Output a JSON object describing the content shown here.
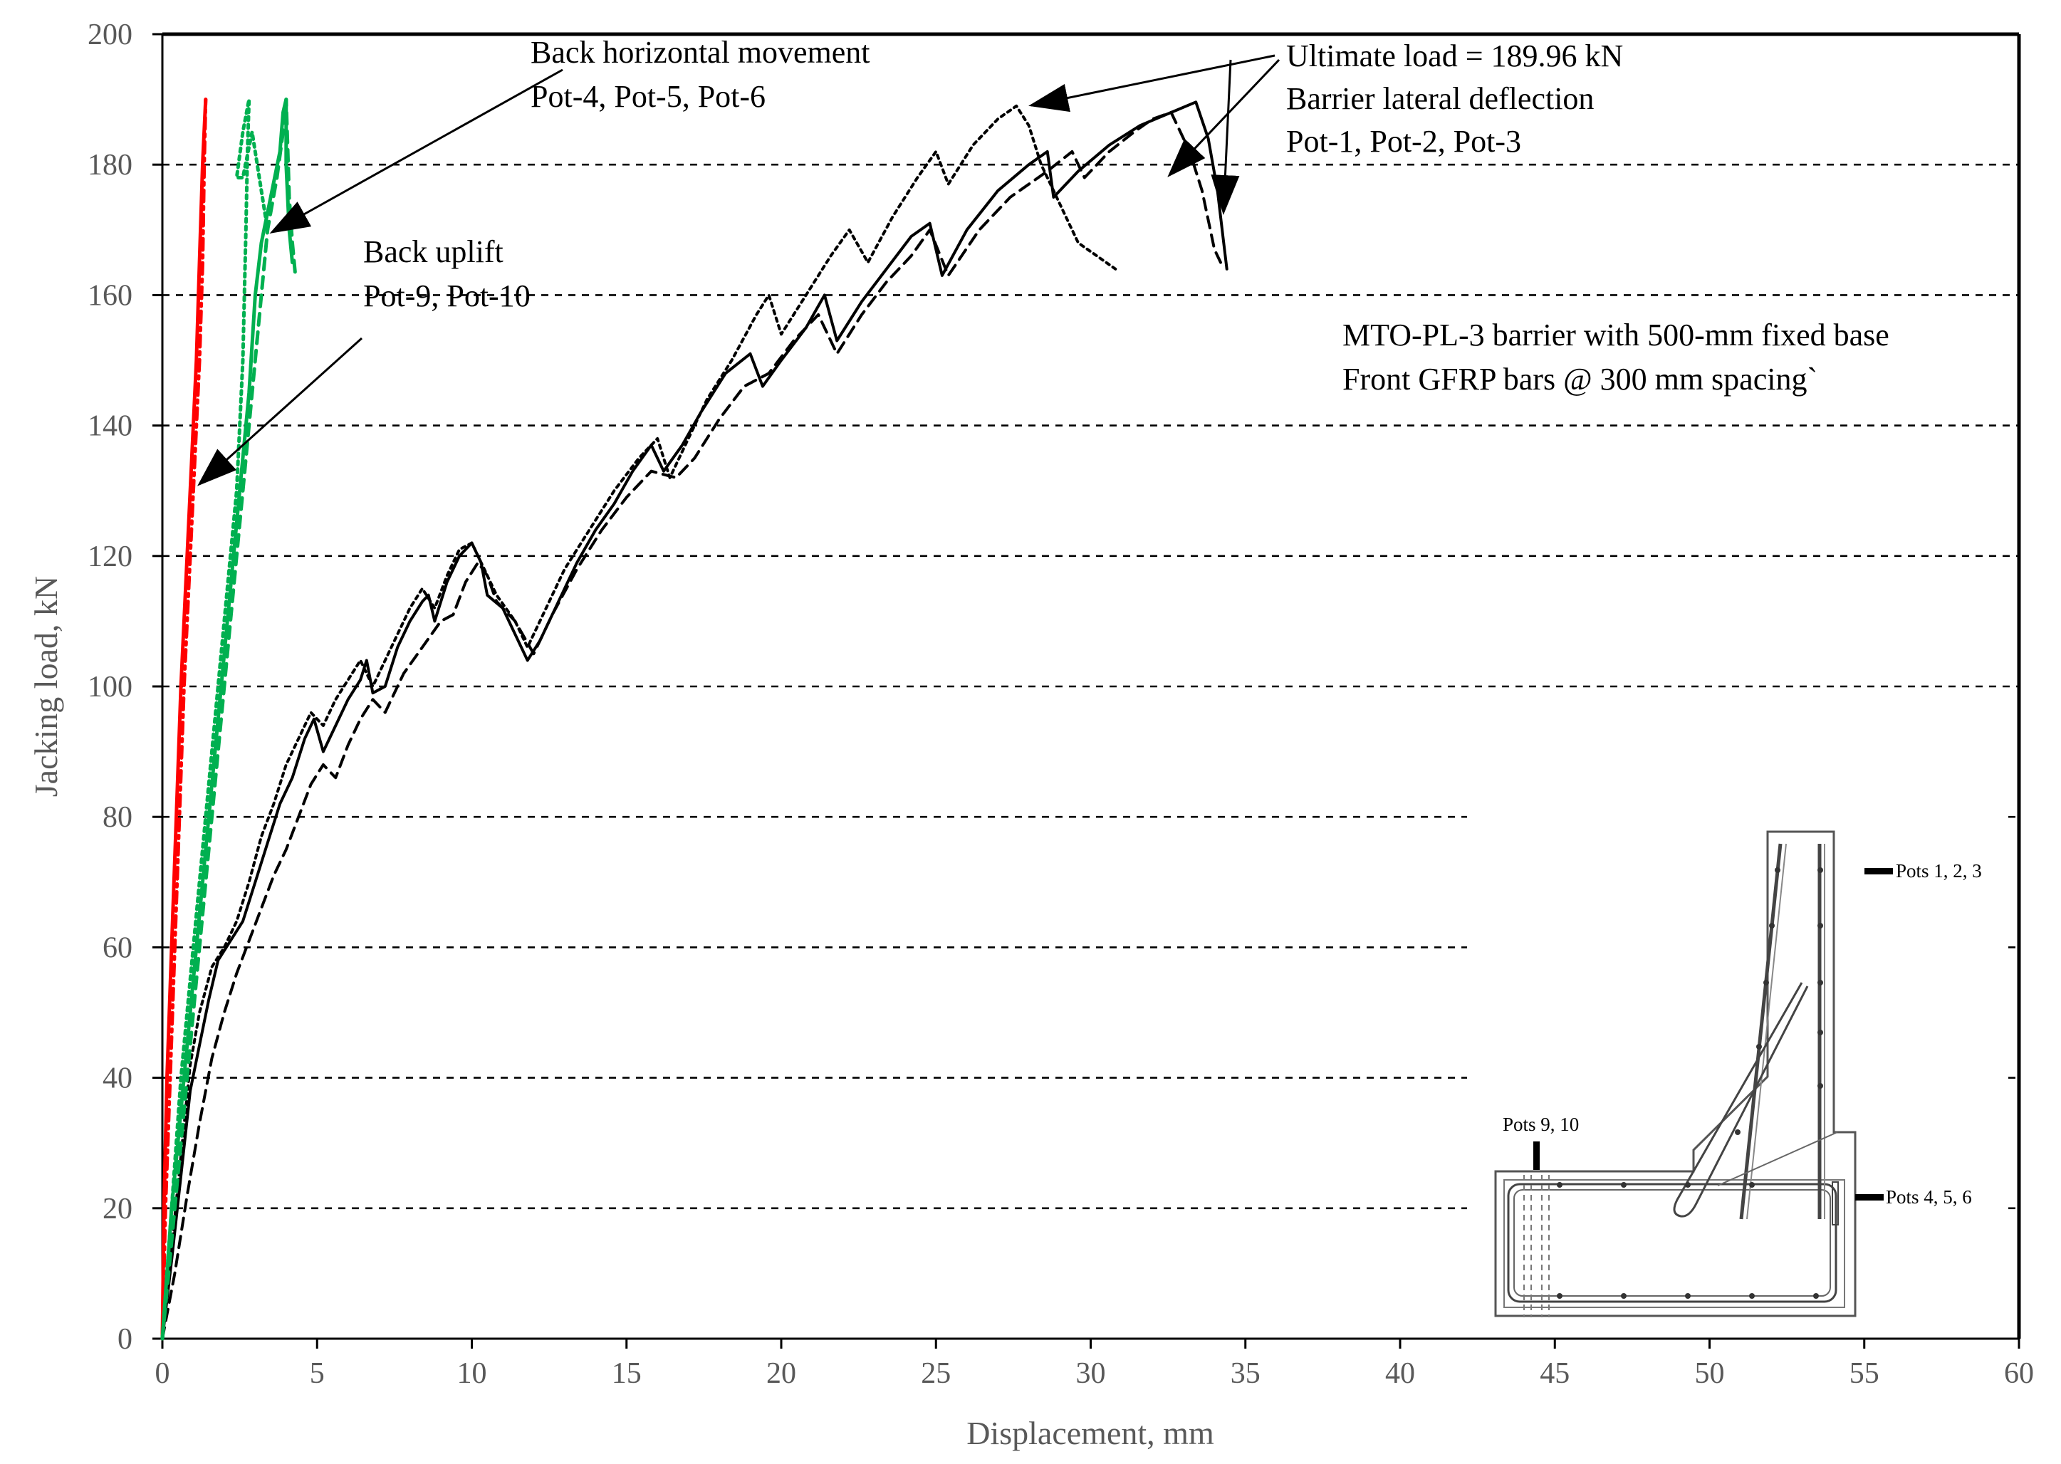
{
  "chart_data": {
    "type": "line",
    "title": "",
    "xlabel": "Displacement, mm",
    "ylabel": "Jacking load, kN",
    "xlim": [
      0,
      60
    ],
    "ylim": [
      0,
      200
    ],
    "x_ticks": [
      0,
      5,
      10,
      15,
      20,
      25,
      30,
      35,
      40,
      45,
      50,
      55,
      60
    ],
    "y_ticks": [
      0,
      20,
      40,
      60,
      80,
      100,
      120,
      140,
      160,
      180,
      200
    ],
    "grid": "horizontal dashed",
    "legend": "none",
    "series": [
      {
        "color": "#000000",
        "dash": "solid",
        "points": [
          [
            0,
            0
          ],
          [
            0.3,
            12
          ],
          [
            0.6,
            25
          ],
          [
            0.9,
            38
          ],
          [
            1.2,
            45
          ],
          [
            1.5,
            52
          ],
          [
            1.8,
            58
          ],
          [
            2.2,
            61
          ],
          [
            2.6,
            64
          ],
          [
            3,
            70
          ],
          [
            3.4,
            76
          ],
          [
            3.8,
            82
          ],
          [
            4.2,
            86
          ],
          [
            4.6,
            92
          ],
          [
            4.9,
            95
          ],
          [
            5.2,
            90
          ],
          [
            5.6,
            94
          ],
          [
            6,
            98
          ],
          [
            6.4,
            101
          ],
          [
            6.6,
            104
          ],
          [
            6.8,
            99
          ],
          [
            7.2,
            100
          ],
          [
            7.6,
            106
          ],
          [
            8,
            110
          ],
          [
            8.4,
            113
          ],
          [
            8.6,
            114
          ],
          [
            8.8,
            110
          ],
          [
            9.2,
            116
          ],
          [
            9.6,
            120
          ],
          [
            10,
            122
          ],
          [
            10.3,
            119
          ],
          [
            10.5,
            114
          ],
          [
            11,
            112
          ],
          [
            11.4,
            108
          ],
          [
            11.8,
            104
          ],
          [
            12.2,
            107
          ],
          [
            12.8,
            113
          ],
          [
            13.4,
            119
          ],
          [
            14,
            124
          ],
          [
            14.6,
            128
          ],
          [
            15.2,
            133
          ],
          [
            15.8,
            137
          ],
          [
            16.2,
            133
          ],
          [
            16.8,
            137
          ],
          [
            17.4,
            142
          ],
          [
            18.2,
            148
          ],
          [
            19,
            151
          ],
          [
            19.4,
            146
          ],
          [
            20,
            150
          ],
          [
            20.8,
            155
          ],
          [
            21.4,
            160
          ],
          [
            21.8,
            153
          ],
          [
            22.6,
            159
          ],
          [
            23.4,
            164
          ],
          [
            24.2,
            169
          ],
          [
            24.8,
            171
          ],
          [
            25.2,
            163
          ],
          [
            26,
            170
          ],
          [
            27,
            176
          ],
          [
            28,
            180
          ],
          [
            28.6,
            182
          ],
          [
            28.8,
            175
          ],
          [
            29.6,
            179
          ],
          [
            30.6,
            183
          ],
          [
            31.6,
            186
          ],
          [
            32.6,
            188
          ],
          [
            33.4,
            189.6
          ],
          [
            33.8,
            184
          ],
          [
            34.1,
            176
          ],
          [
            34.3,
            168
          ],
          [
            34.4,
            164
          ]
        ]
      },
      {
        "color": "#000000",
        "dash": "dashed",
        "points": [
          [
            0,
            0
          ],
          [
            0.4,
            10
          ],
          [
            0.8,
            22
          ],
          [
            1.2,
            33
          ],
          [
            1.6,
            43
          ],
          [
            2,
            50
          ],
          [
            2.4,
            56
          ],
          [
            2.8,
            61
          ],
          [
            3.2,
            66
          ],
          [
            3.6,
            71
          ],
          [
            4,
            75
          ],
          [
            4.4,
            80
          ],
          [
            4.8,
            85
          ],
          [
            5.2,
            88
          ],
          [
            5.6,
            86
          ],
          [
            6,
            91
          ],
          [
            6.4,
            95
          ],
          [
            6.8,
            98
          ],
          [
            7.2,
            96
          ],
          [
            7.8,
            102
          ],
          [
            8.4,
            106
          ],
          [
            9,
            110
          ],
          [
            9.4,
            111
          ],
          [
            9.8,
            116
          ],
          [
            10.2,
            119
          ],
          [
            10.5,
            117
          ],
          [
            10.8,
            113
          ],
          [
            11.4,
            110
          ],
          [
            12,
            105
          ],
          [
            12.6,
            111
          ],
          [
            13.4,
            118
          ],
          [
            14.2,
            124
          ],
          [
            15,
            129
          ],
          [
            15.8,
            133
          ],
          [
            16.6,
            132
          ],
          [
            17.2,
            135
          ],
          [
            18,
            141
          ],
          [
            18.8,
            146
          ],
          [
            19.6,
            148
          ],
          [
            20.4,
            153
          ],
          [
            21.2,
            157
          ],
          [
            21.8,
            151
          ],
          [
            22.6,
            157
          ],
          [
            23.4,
            162
          ],
          [
            24.2,
            166
          ],
          [
            24.8,
            170
          ],
          [
            25.4,
            163
          ],
          [
            26.4,
            170
          ],
          [
            27.4,
            175
          ],
          [
            28.6,
            179
          ],
          [
            29.4,
            182
          ],
          [
            29.8,
            178
          ],
          [
            30.6,
            182
          ],
          [
            31.4,
            185
          ],
          [
            32,
            187
          ],
          [
            32.6,
            188
          ],
          [
            33.2,
            182
          ],
          [
            33.6,
            176
          ],
          [
            34,
            167
          ],
          [
            34.2,
            165
          ]
        ]
      },
      {
        "color": "#000000",
        "dash": "dotted",
        "points": [
          [
            0,
            0
          ],
          [
            0.3,
            14
          ],
          [
            0.6,
            28
          ],
          [
            0.9,
            42
          ],
          [
            1.2,
            50
          ],
          [
            1.6,
            57
          ],
          [
            2,
            60
          ],
          [
            2.4,
            64
          ],
          [
            2.8,
            70
          ],
          [
            3.2,
            77
          ],
          [
            3.6,
            82
          ],
          [
            4,
            88
          ],
          [
            4.4,
            92
          ],
          [
            4.8,
            96
          ],
          [
            5.2,
            94
          ],
          [
            5.6,
            98
          ],
          [
            6,
            101
          ],
          [
            6.4,
            104
          ],
          [
            6.8,
            100
          ],
          [
            7.2,
            104
          ],
          [
            7.6,
            108
          ],
          [
            8,
            112
          ],
          [
            8.4,
            115
          ],
          [
            8.8,
            112
          ],
          [
            9.2,
            117
          ],
          [
            9.6,
            121
          ],
          [
            10,
            122
          ],
          [
            10.4,
            118
          ],
          [
            10.8,
            114
          ],
          [
            11.4,
            110
          ],
          [
            11.8,
            106
          ],
          [
            12.4,
            112
          ],
          [
            13,
            118
          ],
          [
            13.8,
            124
          ],
          [
            14.6,
            130
          ],
          [
            15.4,
            135
          ],
          [
            16,
            138
          ],
          [
            16.4,
            132
          ],
          [
            17,
            138
          ],
          [
            17.6,
            144
          ],
          [
            18.4,
            150
          ],
          [
            19.2,
            157
          ],
          [
            19.6,
            160
          ],
          [
            20,
            154
          ],
          [
            20.8,
            160
          ],
          [
            21.6,
            166
          ],
          [
            22.2,
            170
          ],
          [
            22.8,
            165
          ],
          [
            23.6,
            172
          ],
          [
            24.4,
            178
          ],
          [
            25,
            182
          ],
          [
            25.4,
            177
          ],
          [
            26.2,
            183
          ],
          [
            27,
            187
          ],
          [
            27.6,
            189
          ],
          [
            28,
            186
          ],
          [
            28.4,
            180
          ],
          [
            28.8,
            176
          ],
          [
            29.2,
            172
          ],
          [
            29.6,
            168
          ],
          [
            30.2,
            166
          ],
          [
            30.8,
            164
          ]
        ]
      },
      {
        "color": "#ff0000",
        "dash": "solid",
        "points": [
          [
            0,
            0
          ],
          [
            0.05,
            20
          ],
          [
            0.15,
            40
          ],
          [
            0.3,
            60
          ],
          [
            0.45,
            80
          ],
          [
            0.6,
            100
          ],
          [
            0.8,
            120
          ],
          [
            0.95,
            135
          ],
          [
            1.1,
            150
          ],
          [
            1.2,
            165
          ],
          [
            1.3,
            180
          ],
          [
            1.4,
            190
          ]
        ]
      },
      {
        "color": "#ff0000",
        "dash": "dashdot",
        "points": [
          [
            0,
            0
          ],
          [
            0.1,
            20
          ],
          [
            0.25,
            40
          ],
          [
            0.4,
            60
          ],
          [
            0.55,
            80
          ],
          [
            0.7,
            100
          ],
          [
            0.9,
            120
          ],
          [
            1.05,
            135
          ],
          [
            1.2,
            150
          ],
          [
            1.3,
            165
          ],
          [
            1.35,
            180
          ],
          [
            1.4,
            190
          ]
        ]
      },
      {
        "color": "#00b050",
        "dash": "solid",
        "points": [
          [
            0,
            0
          ],
          [
            0.3,
            20
          ],
          [
            0.7,
            40
          ],
          [
            1.1,
            60
          ],
          [
            1.5,
            80
          ],
          [
            1.9,
            100
          ],
          [
            2.2,
            115
          ],
          [
            2.5,
            130
          ],
          [
            2.8,
            145
          ],
          [
            3,
            160
          ],
          [
            3.2,
            168
          ],
          [
            3.5,
            175
          ],
          [
            3.8,
            182
          ],
          [
            3.9,
            188
          ],
          [
            4,
            190
          ],
          [
            4,
            180
          ],
          [
            4.1,
            170
          ],
          [
            4.2,
            165
          ]
        ]
      },
      {
        "color": "#00b050",
        "dash": "dashed",
        "points": [
          [
            0,
            0
          ],
          [
            0.4,
            20
          ],
          [
            0.8,
            40
          ],
          [
            1.2,
            60
          ],
          [
            1.6,
            80
          ],
          [
            2,
            100
          ],
          [
            2.3,
            115
          ],
          [
            2.6,
            130
          ],
          [
            2.9,
            145
          ],
          [
            3.2,
            160
          ],
          [
            3.4,
            170
          ],
          [
            3.7,
            178
          ],
          [
            3.9,
            185
          ],
          [
            4,
            190
          ],
          [
            4.1,
            175
          ],
          [
            4.2,
            168
          ],
          [
            4.3,
            163
          ]
        ]
      },
      {
        "color": "#00b050",
        "dash": "dotted",
        "points": [
          [
            0,
            0
          ],
          [
            0.3,
            20
          ],
          [
            0.6,
            40
          ],
          [
            1,
            60
          ],
          [
            1.4,
            80
          ],
          [
            1.8,
            100
          ],
          [
            2.1,
            115
          ],
          [
            2.4,
            130
          ],
          [
            2.6,
            150
          ],
          [
            2.7,
            170
          ],
          [
            2.75,
            182
          ],
          [
            2.8,
            190
          ],
          [
            2.6,
            185
          ],
          [
            2.4,
            178
          ],
          [
            2.6,
            178
          ],
          [
            2.9,
            185
          ],
          [
            3.2,
            176
          ],
          [
            3.4,
            170
          ]
        ]
      }
    ],
    "annotations": [
      {
        "lines": [
          "Back horizontal movement",
          "Pot-4, Pot-5, Pot-6"
        ]
      },
      {
        "lines": [
          "Ultimate load = 189.96 kN",
          "Barrier lateral deflection",
          "Pot-1, Pot-2,  Pot-3"
        ]
      },
      {
        "lines": [
          "Back uplift",
          "Pot-9, Pot-10"
        ]
      },
      {
        "lines": [
          "MTO-PL-3 barrier with 500-mm fixed base",
          "Front GFRP bars @ 300 mm spacing`"
        ]
      }
    ],
    "inset_labels": [
      "Pots 1, 2, 3",
      "Pots 9, 10",
      "Pots 4, 5, 6"
    ]
  }
}
